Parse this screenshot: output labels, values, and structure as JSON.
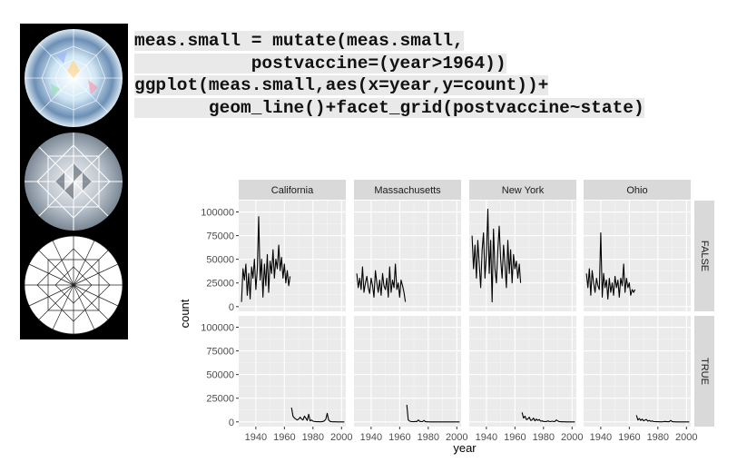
{
  "code": {
    "lines": [
      "meas.small = mutate(meas.small,",
      "           postvaccine=(year>1964))",
      "ggplot(meas.small,aes(x=year,y=count))+",
      "       geom_line()+facet_grid(postvaccine~state)"
    ]
  },
  "images": [
    {
      "name": "brilliant-diamond-color"
    },
    {
      "name": "brilliant-diamond-reflector"
    },
    {
      "name": "brilliant-diamond-line-drawing"
    }
  ],
  "colors": {
    "panel_bg": "#ebebeb",
    "strip_bg": "#d9d9d9",
    "grid_major": "#ffffff",
    "grid_minor": "#f5f5f5",
    "line": "#000000",
    "code_bg": "#e9e9e9"
  },
  "chart_data": {
    "type": "line",
    "facet": {
      "cols": "state",
      "rows": "postvaccine"
    },
    "columns": [
      "California",
      "Massachusetts",
      "New York",
      "Ohio"
    ],
    "rows": [
      "FALSE",
      "TRUE"
    ],
    "xlabel": "year",
    "ylabel": "count",
    "xlim": [
      1928,
      2003
    ],
    "ylim": [
      -5000,
      112000
    ],
    "xticks": [
      1940,
      1960,
      1980,
      2000
    ],
    "yticks": [
      0,
      25000,
      50000,
      75000,
      100000
    ],
    "xtick_labels": [
      "1940",
      "1960",
      "1980",
      "2000"
    ],
    "ytick_labels": [
      "0",
      "25000",
      "50000",
      "75000",
      "100000"
    ],
    "grid": true,
    "series": [
      {
        "state": "California",
        "postvaccine": "FALSE",
        "x": [
          1930,
          1931,
          1932,
          1933,
          1934,
          1935,
          1936,
          1937,
          1938,
          1939,
          1940,
          1941,
          1942,
          1943,
          1944,
          1945,
          1946,
          1947,
          1948,
          1949,
          1950,
          1951,
          1952,
          1953,
          1954,
          1955,
          1956,
          1957,
          1958,
          1959,
          1960,
          1961,
          1962,
          1963,
          1964
        ],
        "y": [
          5000,
          40000,
          28000,
          45000,
          12000,
          35000,
          8000,
          42000,
          30000,
          50000,
          18000,
          40000,
          95000,
          28000,
          50000,
          10000,
          45000,
          22000,
          55000,
          15000,
          48000,
          35000,
          60000,
          30000,
          50000,
          40000,
          65000,
          38000,
          52000,
          30000,
          45000,
          25000,
          38000,
          22000,
          32000
        ]
      },
      {
        "state": "Massachusetts",
        "postvaccine": "FALSE",
        "x": [
          1930,
          1931,
          1932,
          1933,
          1934,
          1935,
          1936,
          1937,
          1938,
          1939,
          1940,
          1941,
          1942,
          1943,
          1944,
          1945,
          1946,
          1947,
          1948,
          1949,
          1950,
          1951,
          1952,
          1953,
          1954,
          1955,
          1956,
          1957,
          1958,
          1959,
          1960,
          1961,
          1962,
          1963,
          1964
        ],
        "y": [
          35000,
          20000,
          30000,
          18000,
          42000,
          15000,
          25000,
          32000,
          20000,
          14000,
          30000,
          22000,
          10000,
          38000,
          25000,
          15000,
          28000,
          12000,
          35000,
          22000,
          18000,
          30000,
          10000,
          42000,
          15000,
          28000,
          20000,
          45000,
          18000,
          25000,
          10000,
          28000,
          22000,
          15000,
          5000
        ]
      },
      {
        "state": "New York",
        "postvaccine": "FALSE",
        "x": [
          1930,
          1931,
          1932,
          1933,
          1934,
          1935,
          1936,
          1937,
          1938,
          1939,
          1940,
          1941,
          1942,
          1943,
          1944,
          1945,
          1946,
          1947,
          1948,
          1949,
          1950,
          1951,
          1952,
          1953,
          1954,
          1955,
          1956,
          1957,
          1958,
          1959,
          1960,
          1961,
          1962,
          1963,
          1964
        ],
        "y": [
          75000,
          40000,
          65000,
          30000,
          70000,
          45000,
          20000,
          60000,
          78000,
          30000,
          55000,
          103000,
          35000,
          70000,
          5000,
          82000,
          40000,
          25000,
          60000,
          85000,
          50000,
          30000,
          65000,
          45000,
          20000,
          70000,
          35000,
          60000,
          25000,
          55000,
          40000,
          48000,
          30000,
          45000,
          25000
        ]
      },
      {
        "state": "Ohio",
        "postvaccine": "FALSE",
        "x": [
          1930,
          1931,
          1932,
          1933,
          1934,
          1935,
          1936,
          1937,
          1938,
          1939,
          1940,
          1941,
          1942,
          1943,
          1944,
          1945,
          1946,
          1947,
          1948,
          1949,
          1950,
          1951,
          1952,
          1953,
          1954,
          1955,
          1956,
          1957,
          1958,
          1959,
          1960,
          1961,
          1962,
          1963,
          1964
        ],
        "y": [
          35000,
          20000,
          40000,
          12000,
          38000,
          25000,
          15000,
          30000,
          22000,
          18000,
          78000,
          10000,
          35000,
          20000,
          28000,
          8000,
          30000,
          15000,
          25000,
          12000,
          32000,
          20000,
          28000,
          10000,
          30000,
          22000,
          45000,
          15000,
          30000,
          20000,
          25000,
          12000,
          18000,
          15000,
          18000
        ]
      },
      {
        "state": "California",
        "postvaccine": "TRUE",
        "x": [
          1965,
          1966,
          1967,
          1968,
          1969,
          1970,
          1971,
          1972,
          1973,
          1974,
          1975,
          1976,
          1977,
          1978,
          1979,
          1980,
          1981,
          1982,
          1983,
          1984,
          1985,
          1986,
          1987,
          1988,
          1989,
          1990,
          1991,
          1992,
          1993,
          1994,
          1995,
          1996,
          1997,
          1998,
          1999,
          2000,
          2001,
          2002
        ],
        "y": [
          15000,
          6000,
          4000,
          3000,
          2000,
          3000,
          5000,
          3000,
          2000,
          6000,
          4000,
          1500,
          8000,
          1000,
          2000,
          800,
          500,
          300,
          200,
          150,
          100,
          200,
          500,
          1000,
          3000,
          9000,
          2000,
          500,
          200,
          100,
          50,
          40,
          30,
          20,
          30,
          20,
          15,
          10
        ]
      },
      {
        "state": "Massachusetts",
        "postvaccine": "TRUE",
        "x": [
          1965,
          1966,
          1967,
          1968,
          1969,
          1970,
          1971,
          1972,
          1973,
          1974,
          1975,
          1976,
          1977,
          1978,
          1979,
          1980,
          1981,
          1982,
          1983,
          1984,
          1985,
          1986,
          1987,
          1988,
          1989,
          1990,
          1991,
          1992,
          1993,
          1994,
          1995,
          1996,
          1997,
          1998,
          1999,
          2000,
          2001,
          2002
        ],
        "y": [
          18000,
          2000,
          800,
          400,
          300,
          200,
          500,
          300,
          2000,
          600,
          400,
          300,
          1500,
          200,
          100,
          50,
          30,
          20,
          10,
          10,
          10,
          10,
          10,
          20,
          10,
          20,
          10,
          5,
          5,
          5,
          5,
          5,
          5,
          5,
          5,
          5,
          5,
          5
        ]
      },
      {
        "state": "New York",
        "postvaccine": "TRUE",
        "x": [
          1965,
          1966,
          1967,
          1968,
          1969,
          1970,
          1971,
          1972,
          1973,
          1974,
          1975,
          1976,
          1977,
          1978,
          1979,
          1980,
          1981,
          1982,
          1983,
          1984,
          1985,
          1986,
          1987,
          1988,
          1989,
          1990,
          1991,
          1992,
          1993,
          1994,
          1995,
          1996,
          1997,
          1998,
          1999,
          2000,
          2001,
          2002
        ],
        "y": [
          10000,
          4000,
          6000,
          2500,
          3000,
          5000,
          1500,
          2000,
          4000,
          1000,
          3000,
          1500,
          2500,
          800,
          1000,
          500,
          400,
          300,
          1000,
          500,
          300,
          800,
          400,
          500,
          2000,
          1000,
          300,
          200,
          100,
          50,
          40,
          30,
          20,
          20,
          15,
          10,
          10,
          10
        ]
      },
      {
        "state": "Ohio",
        "postvaccine": "TRUE",
        "x": [
          1965,
          1966,
          1967,
          1968,
          1969,
          1970,
          1971,
          1972,
          1973,
          1974,
          1975,
          1976,
          1977,
          1978,
          1979,
          1980,
          1981,
          1982,
          1983,
          1984,
          1985,
          1986,
          1987,
          1988,
          1989,
          1990,
          1991,
          1992,
          1993,
          1994,
          1995,
          1996,
          1997,
          1998,
          1999,
          2000,
          2001,
          2002
        ],
        "y": [
          7000,
          2000,
          3500,
          1500,
          3000,
          1000,
          2000,
          2500,
          800,
          1500,
          600,
          900,
          400,
          300,
          200,
          150,
          100,
          80,
          60,
          200,
          500,
          150,
          300,
          200,
          1500,
          400,
          100,
          50,
          30,
          20,
          15,
          10,
          10,
          10,
          10,
          10,
          10,
          10
        ]
      }
    ]
  }
}
